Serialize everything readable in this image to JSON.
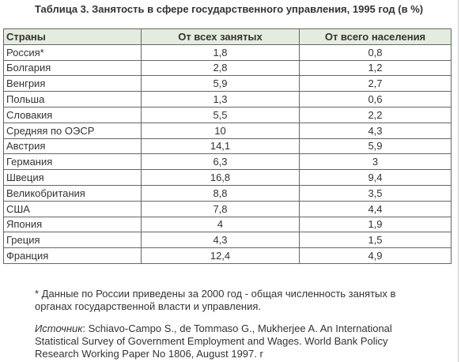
{
  "title": "Таблица 3. Занятость в сфере государственного управления, 1995 год (в %)",
  "table": {
    "header": [
      "Страны",
      "От всех занятых",
      "От всего населения"
    ],
    "rows": [
      [
        "Россия*",
        "1,8",
        "0,8"
      ],
      [
        "Болгария",
        "2,8",
        "1,2"
      ],
      [
        "Венгрия",
        "5,9",
        "2,7"
      ],
      [
        "Польша",
        "1,3",
        "0,6"
      ],
      [
        "Словакия",
        "5,5",
        "2,2"
      ],
      [
        "Средняя по ОЭСР",
        "10",
        "4,3"
      ],
      [
        "Австрия",
        "14,1",
        "5,9"
      ],
      [
        "Германия",
        "6,3",
        "3"
      ],
      [
        "Швеция",
        "16,8",
        "9,4"
      ],
      [
        "Великобритания",
        "8,8",
        "3,5"
      ],
      [
        "США",
        "7,8",
        "4,4"
      ],
      [
        "Япония",
        "4",
        "1,9"
      ],
      [
        "Греция",
        "4,3",
        "1,5"
      ],
      [
        "Франция",
        "12,4",
        "4,9"
      ]
    ]
  },
  "footnote": "* Данные по России приведены за 2000 год - общая численность занятых в органах государственной власти и управления.",
  "source": {
    "label": "Источник",
    "text": ": Schiavo-Campo S., de Tommaso G., Mukherjee A. An International Statistical Survey of Government Employment and Wages. World Bank Policy Research Working Paper No 1806, August 1997. r"
  }
}
